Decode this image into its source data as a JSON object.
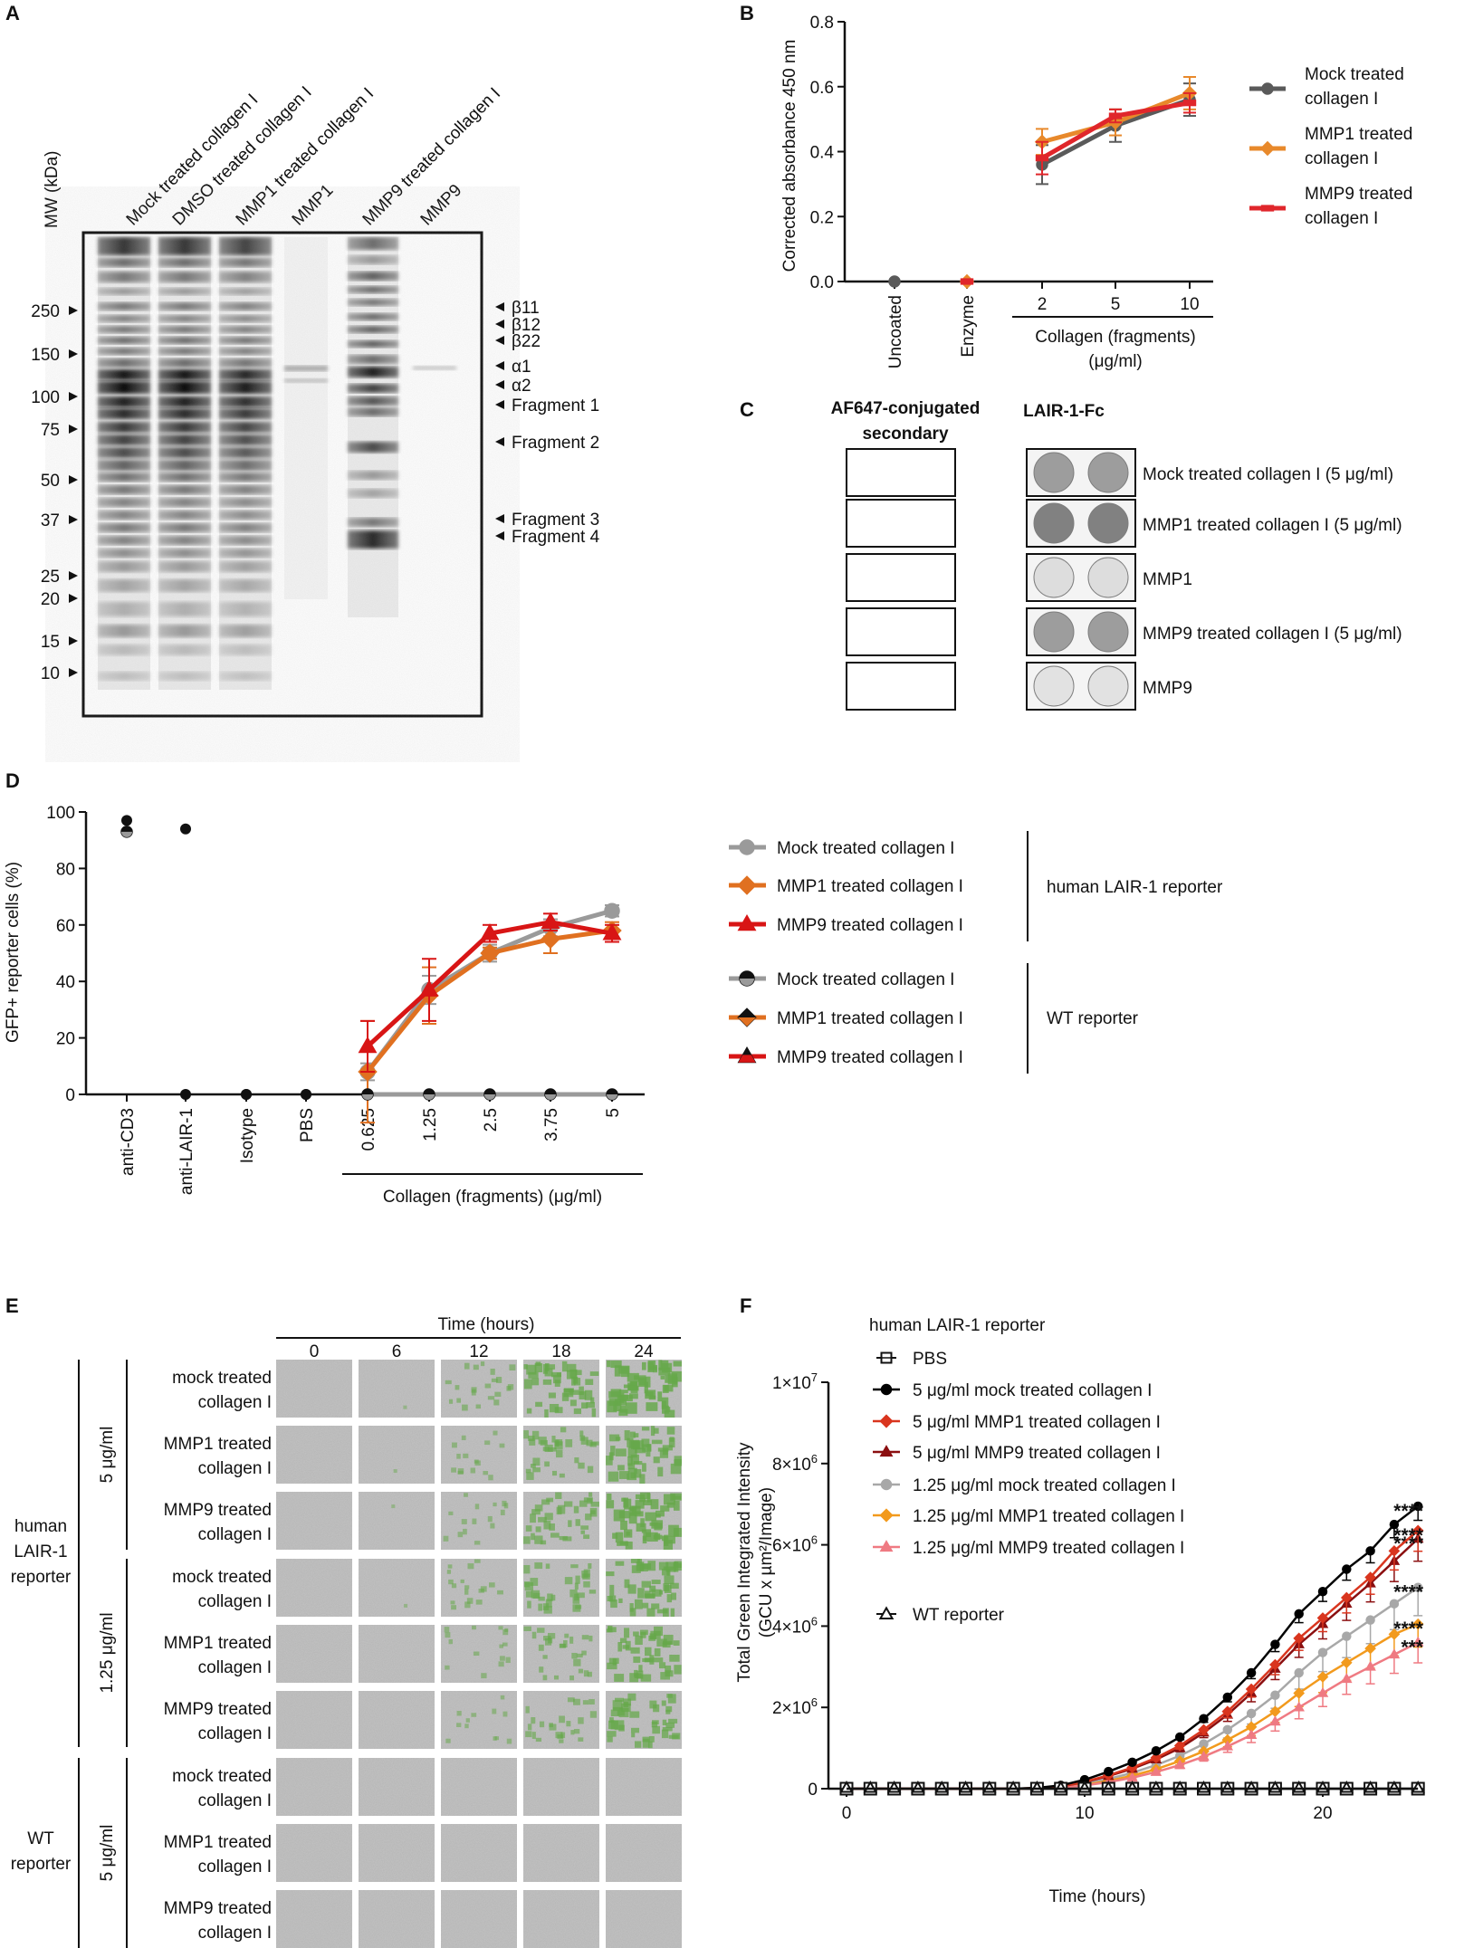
{
  "panel_letters": {
    "a": "A",
    "b": "B",
    "c": "C",
    "d": "D",
    "e": "E",
    "f": "F"
  },
  "colors": {
    "mock": "#5a5a5a",
    "mmp1": "#e8892b",
    "mmp9": "#e0262b",
    "mock_d": "#9a9a9a",
    "mmp1_d": "#e07020",
    "mmp9_d": "#d81515",
    "f_mock5": "#000000",
    "f_mmp1_5": "#d9351e",
    "f_mmp9_5": "#8b0f10",
    "f_mock125": "#a8a8a8",
    "f_mmp1_125": "#f29a1d",
    "f_mmp9_125": "#ef7a82",
    "cell_grey": "#b5b5b5",
    "cell_green": "#66a84a"
  },
  "gel": {
    "mw_label": "MW (kDa)",
    "lanes": [
      "Mock treated collagen I",
      "DMSO treated collagen I",
      "MMP1 treated collagen I",
      "MMP1",
      "MMP9 treated collagen I",
      "MMP9"
    ],
    "markers": [
      "250",
      "150",
      "100",
      "75",
      "50",
      "37",
      "25",
      "20",
      "15",
      "10"
    ],
    "bands": [
      "β11",
      "β12",
      "β22",
      "α1",
      "α2",
      "Fragment 1",
      "Fragment 2",
      "Fragment 3",
      "Fragment 4"
    ]
  },
  "panel_c": {
    "col1": "AF647-conjugated secondary",
    "col2": "LAIR-1-Fc",
    "rows": [
      "Mock treated collagen I (5 μg/ml)",
      "MMP1 treated collagen I (5 μg/ml)",
      "MMP1",
      "MMP9 treated collagen I (5 μg/ml)",
      "MMP9"
    ],
    "row_colors": [
      "#111111",
      "#e8892b",
      "#e8892b",
      "#e0262b",
      "#e0262b"
    ],
    "dot_intensity": [
      0.55,
      0.75,
      0.1,
      0.55,
      0.06
    ]
  },
  "panel_e": {
    "time_title": "Time (hours)",
    "times": [
      "0",
      "6",
      "12",
      "18",
      "24"
    ],
    "group1": "human LAIR-1 reporter",
    "group2": "WT reporter",
    "conc1": "5 μg/ml",
    "conc2": "1.25 μg/ml",
    "conc3": "5 μg/ml",
    "rows": [
      "mock treated collagen I",
      "MMP1 treated collagen I",
      "MMP9 treated collagen I",
      "mock treated collagen I",
      "MMP1 treated collagen I",
      "MMP9 treated collagen I",
      "mock treated collagen I",
      "MMP1 treated collagen I",
      "MMP9 treated collagen I"
    ],
    "green_coverage": [
      [
        0,
        0.02,
        0.35,
        0.75,
        0.95
      ],
      [
        0,
        0.01,
        0.25,
        0.55,
        0.8
      ],
      [
        0,
        0.01,
        0.25,
        0.6,
        0.9
      ],
      [
        0,
        0.01,
        0.3,
        0.55,
        0.8
      ],
      [
        0,
        0,
        0.25,
        0.45,
        0.75
      ],
      [
        0,
        0,
        0.2,
        0.4,
        0.7
      ],
      [
        0,
        0,
        0,
        0,
        0
      ],
      [
        0,
        0,
        0,
        0,
        0
      ],
      [
        0,
        0,
        0,
        0,
        0
      ]
    ]
  },
  "chart_data": [
    {
      "id": "B",
      "type": "line",
      "ylabel": "Corrected absorbance 450 nm",
      "ylim": [
        0,
        0.8
      ],
      "yticks": [
        "0.0",
        "0.2",
        "0.4",
        "0.6",
        "0.8"
      ],
      "categories": [
        "Uncoated",
        "Enzyme",
        "2",
        "5",
        "10"
      ],
      "group_label": "Collagen (fragments) (μg/ml)",
      "legend_placement": "right",
      "series": [
        {
          "name": "Mock treated collagen I",
          "color": "#5a5a5a",
          "marker": "circle",
          "values": [
            0,
            null,
            0.36,
            0.48,
            0.56
          ],
          "err": [
            0,
            0,
            0.06,
            0.05,
            0.05
          ]
        },
        {
          "name": "MMP1 treated collagen I",
          "color": "#e8892b",
          "marker": "diamond",
          "values": [
            null,
            0,
            0.43,
            0.49,
            0.58
          ],
          "err": [
            0,
            0,
            0.04,
            0.04,
            0.05
          ]
        },
        {
          "name": "MMP9 treated collagen I",
          "color": "#e0262b",
          "marker": "rect",
          "values": [
            null,
            0,
            0.38,
            0.51,
            0.55
          ],
          "err": [
            0,
            0,
            0.05,
            0.02,
            0.03
          ]
        }
      ]
    },
    {
      "id": "D",
      "type": "line",
      "ylabel": "GFP+ reporter cells (%)",
      "ylim": [
        0,
        100
      ],
      "yticks": [
        "0",
        "20",
        "40",
        "60",
        "80",
        "100"
      ],
      "categories": [
        "anti-CD3",
        "anti-LAIR-1",
        "Isotype",
        "PBS",
        "0.625",
        "1.25",
        "2.5",
        "3.75",
        "5"
      ],
      "group_label": "Collagen (fragments) (μg/ml)",
      "legend_groups": [
        "human LAIR-1 reporter",
        "WT reporter"
      ],
      "series": [
        {
          "name": "Mock treated collagen I",
          "group": "human LAIR-1 reporter",
          "color": "#9a9a9a",
          "marker": "circle",
          "values": [
            null,
            null,
            null,
            null,
            8,
            37,
            50,
            59,
            65
          ],
          "err": [
            0,
            0,
            0,
            0,
            3,
            5,
            3,
            3,
            2
          ]
        },
        {
          "name": "MMP1 treated collagen I",
          "group": "human LAIR-1 reporter",
          "color": "#e07020",
          "marker": "diamond",
          "values": [
            null,
            null,
            null,
            null,
            8,
            35,
            50,
            55,
            58
          ],
          "err": [
            0,
            0,
            0,
            0,
            18,
            10,
            2,
            5,
            3
          ]
        },
        {
          "name": "MMP9 treated collagen I",
          "group": "human LAIR-1 reporter",
          "color": "#d81515",
          "marker": "triangle",
          "values": [
            null,
            null,
            null,
            null,
            17,
            37,
            57,
            61,
            57
          ],
          "err": [
            0,
            0,
            0,
            0,
            9,
            11,
            3,
            3,
            3
          ]
        },
        {
          "name": "Mock treated collagen I",
          "group": "WT reporter",
          "color": "#9a9a9a",
          "marker": "circle-half",
          "values": [
            null,
            null,
            null,
            null,
            0,
            0,
            0,
            0,
            0
          ],
          "err": []
        },
        {
          "name": "MMP1 treated collagen I",
          "group": "WT reporter",
          "color": "#e07020",
          "marker": "diamond-half",
          "values": [
            null,
            null,
            null,
            null,
            0,
            0,
            0,
            0,
            0
          ],
          "err": []
        },
        {
          "name": "MMP9 treated collagen I",
          "group": "WT reporter",
          "color": "#d81515",
          "marker": "triangle-half",
          "values": [
            null,
            null,
            null,
            null,
            0,
            0,
            0,
            0,
            0
          ],
          "err": []
        }
      ],
      "controls": [
        {
          "category": "anti-CD3",
          "values": [
            97,
            93
          ],
          "reporter": [
            "human LAIR-1 reporter",
            "WT reporter"
          ]
        },
        {
          "category": "anti-LAIR-1",
          "values": [
            94,
            0
          ],
          "reporter": [
            "human LAIR-1 reporter",
            "WT reporter"
          ]
        },
        {
          "category": "Isotype",
          "values": [
            0,
            0
          ]
        },
        {
          "category": "PBS",
          "values": [
            0,
            0
          ]
        }
      ]
    },
    {
      "id": "F",
      "type": "line",
      "title": "human LAIR-1 reporter",
      "xlabel": "Time (hours)",
      "ylabel": "Total Green Integrated Intensity (GCU x µm²/Image)",
      "xlim": [
        0,
        24
      ],
      "ylim": [
        0,
        10000000
      ],
      "xticks": [
        "0",
        "10",
        "20"
      ],
      "yticks": [
        {
          "v": 0,
          "base": "0",
          "exp": ""
        },
        {
          "v": 2000000,
          "base": "2×10",
          "exp": "6"
        },
        {
          "v": 4000000,
          "base": "4×10",
          "exp": "6"
        },
        {
          "v": 6000000,
          "base": "6×10",
          "exp": "6"
        },
        {
          "v": 8000000,
          "base": "8×10",
          "exp": "6"
        },
        {
          "v": 10000000,
          "base": "1×10",
          "exp": "7"
        }
      ],
      "x": [
        0,
        1,
        2,
        3,
        4,
        5,
        6,
        7,
        8,
        9,
        10,
        11,
        12,
        13,
        14,
        15,
        16,
        17,
        18,
        19,
        20,
        21,
        22,
        23,
        24
      ],
      "series": [
        {
          "name": "PBS",
          "color": "#111111",
          "marker": "square-open",
          "values": [
            0,
            0,
            0,
            0,
            0,
            0,
            0,
            0,
            0,
            0,
            0,
            0,
            0,
            0,
            0,
            0,
            0,
            0,
            0,
            0,
            0,
            0,
            0,
            0,
            0
          ],
          "sig": ""
        },
        {
          "name": "5 μg/ml mock treated collagen I",
          "color": "#000000",
          "marker": "circle",
          "values": [
            0,
            0,
            0,
            0,
            0,
            0,
            0,
            0,
            20000,
            80000,
            220000,
            420000,
            650000,
            930000,
            1270000,
            1720000,
            2250000,
            2850000,
            3550000,
            4300000,
            4850000,
            5400000,
            5850000,
            6500000,
            6950000
          ],
          "err": 0.05,
          "sig": "****"
        },
        {
          "name": "5 μg/ml MMP1 treated collagen I",
          "color": "#d9351e",
          "marker": "diamond",
          "values": [
            0,
            0,
            0,
            0,
            0,
            0,
            0,
            0,
            15000,
            60000,
            170000,
            330000,
            520000,
            760000,
            1060000,
            1450000,
            1900000,
            2450000,
            3050000,
            3700000,
            4200000,
            4700000,
            5200000,
            5850000,
            6350000
          ],
          "err": 0.08,
          "sig": "****"
        },
        {
          "name": "5 μg/ml MMP9 treated collagen I",
          "color": "#8b0f10",
          "marker": "triangle",
          "values": [
            0,
            0,
            0,
            0,
            0,
            0,
            0,
            0,
            15000,
            55000,
            160000,
            310000,
            490000,
            720000,
            1000000,
            1380000,
            1820000,
            2350000,
            2950000,
            3550000,
            4050000,
            4550000,
            5050000,
            5600000,
            6150000
          ],
          "err": 0.09,
          "sig": "****"
        },
        {
          "name": "1.25 μg/ml mock treated collagen I",
          "color": "#a8a8a8",
          "marker": "circle",
          "values": [
            0,
            0,
            0,
            0,
            0,
            0,
            0,
            0,
            10000,
            45000,
            120000,
            240000,
            390000,
            580000,
            810000,
            1100000,
            1450000,
            1850000,
            2300000,
            2850000,
            3350000,
            3750000,
            4150000,
            4550000,
            4950000
          ],
          "err": 0.14,
          "sig": "****"
        },
        {
          "name": "1.25 μg/ml MMP1 treated collagen I",
          "color": "#f29a1d",
          "marker": "diamond",
          "values": [
            0,
            0,
            0,
            0,
            0,
            0,
            0,
            0,
            8000,
            35000,
            95000,
            190000,
            320000,
            480000,
            680000,
            920000,
            1200000,
            1520000,
            1900000,
            2350000,
            2750000,
            3100000,
            3450000,
            3800000,
            4050000
          ],
          "err": 0.14,
          "sig": "****"
        },
        {
          "name": "1.25 μg/ml MMP9 treated collagen I",
          "color": "#ef7a82",
          "marker": "triangle",
          "values": [
            0,
            0,
            0,
            0,
            0,
            0,
            0,
            0,
            6000,
            28000,
            80000,
            160000,
            270000,
            410000,
            580000,
            790000,
            1040000,
            1320000,
            1650000,
            2000000,
            2350000,
            2700000,
            3000000,
            3300000,
            3600000
          ],
          "err": 0.14,
          "sig": "***"
        },
        {
          "name": "WT reporter",
          "color": "#111111",
          "marker": "triangle-open",
          "values": [
            0,
            0,
            0,
            0,
            0,
            0,
            0,
            0,
            0,
            0,
            0,
            0,
            0,
            0,
            0,
            0,
            0,
            0,
            0,
            0,
            0,
            0,
            0,
            0,
            0
          ],
          "sig": ""
        }
      ]
    }
  ]
}
